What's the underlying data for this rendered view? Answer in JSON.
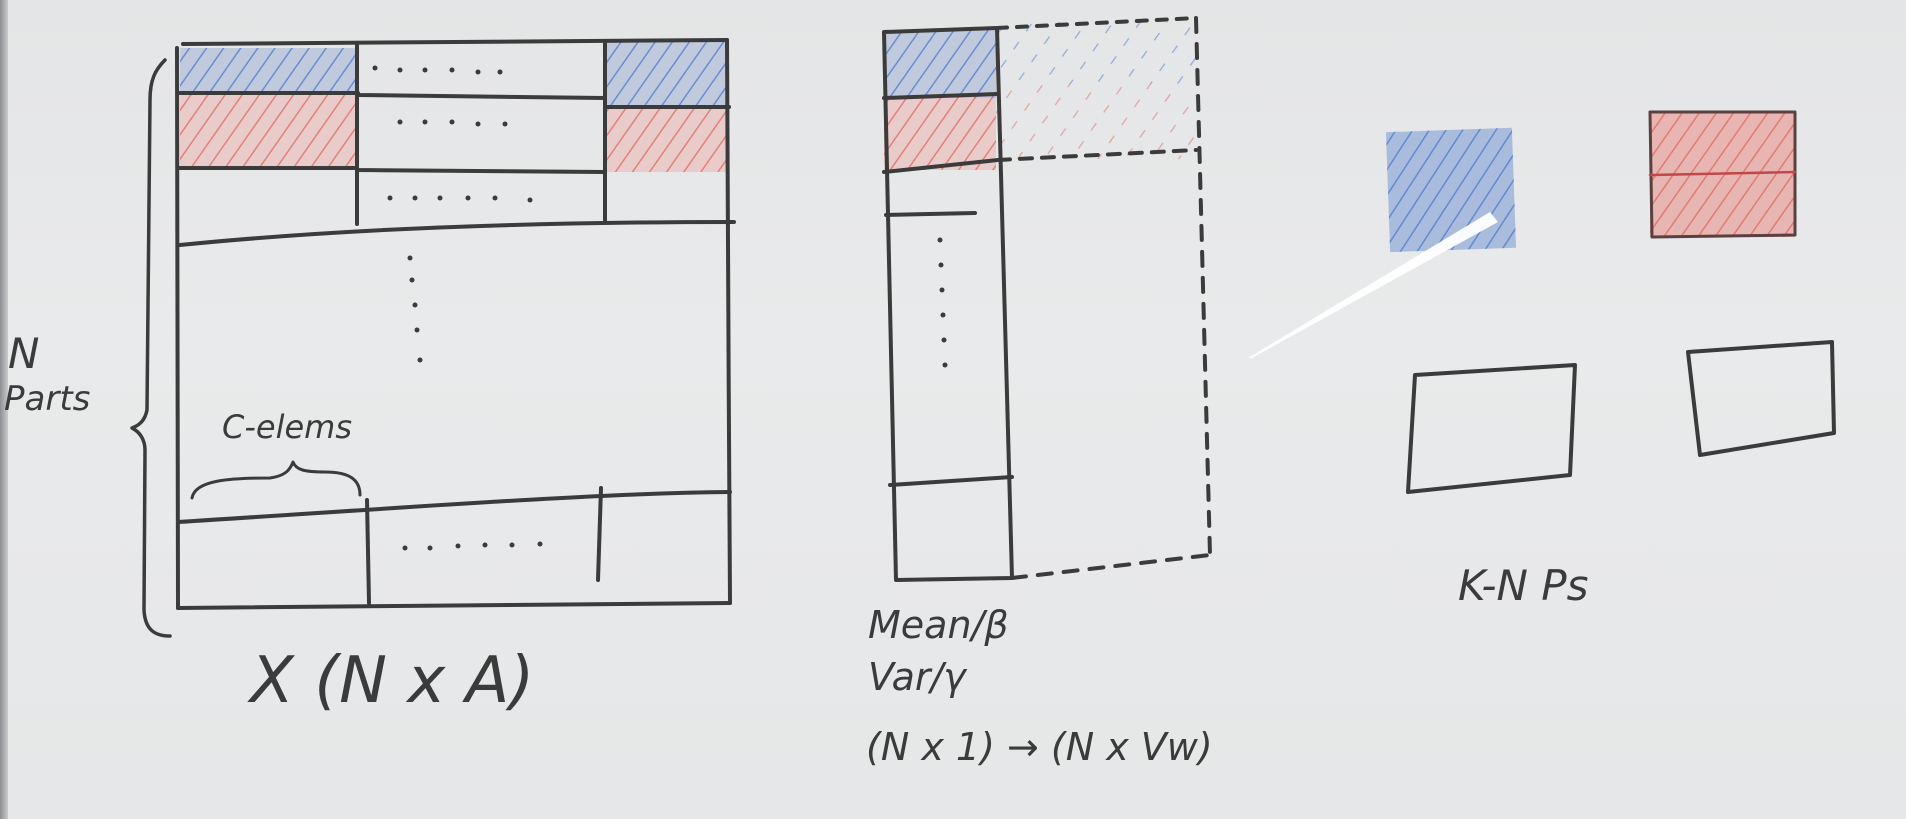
{
  "whiteboard": {
    "left_matrix": {
      "label": "X (N x A)",
      "side_label_line1": "N",
      "side_label_line2": "Parts",
      "span_label": "C-elems"
    },
    "middle_matrix": {
      "label_line1": "Mean/β",
      "label_line2": "Var/γ",
      "label_line3": "(N x 1) → (N x Vw)"
    },
    "right_group": {
      "label": "K-N Ps"
    },
    "colors": {
      "marker": "#3b3b3b",
      "blue": "#4a78d0",
      "red": "#e0605a",
      "blue_fill": "#9fb4d8",
      "red_fill": "#e8a9a4"
    }
  }
}
